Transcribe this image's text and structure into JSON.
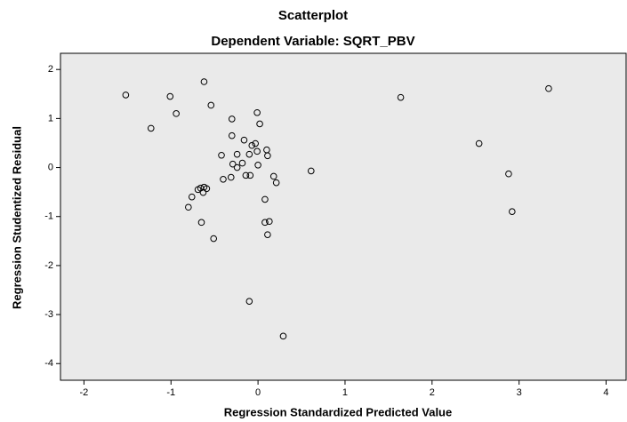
{
  "chart_data": {
    "type": "scatter",
    "title": "Scatterplot",
    "subtitle": "Dependent Variable: SQRT_PBV",
    "x_label": "Regression Standardized Predicted Value",
    "y_label": "Regression Studentized Residual",
    "x": [
      -1.52,
      -1.01,
      -0.94,
      -0.62,
      -1.23,
      -0.54,
      -0.3,
      -0.01,
      0.02,
      -0.3,
      -0.16,
      -0.03,
      -0.07,
      0.1,
      -0.01,
      0.11,
      -0.42,
      -0.24,
      -0.1,
      -0.18,
      -0.29,
      -0.24,
      0.0,
      -0.14,
      -0.09,
      -0.31,
      -0.4,
      0.18,
      0.21,
      0.61,
      -0.62,
      -0.69,
      -0.66,
      -0.59,
      -0.63,
      -0.76,
      -0.8,
      0.08,
      -0.65,
      0.08,
      0.13,
      0.11,
      -0.51,
      -0.1,
      0.29,
      1.64,
      2.54,
      3.34,
      2.88,
      2.92
    ],
    "values": [
      1.48,
      1.45,
      1.1,
      1.75,
      0.8,
      1.27,
      0.99,
      1.12,
      0.89,
      0.65,
      0.56,
      0.49,
      0.45,
      0.36,
      0.33,
      0.24,
      0.25,
      0.27,
      0.27,
      0.09,
      0.07,
      0.0,
      0.05,
      -0.16,
      -0.16,
      -0.2,
      -0.24,
      -0.18,
      -0.31,
      -0.07,
      -0.4,
      -0.45,
      -0.42,
      -0.43,
      -0.51,
      -0.6,
      -0.81,
      -0.65,
      -1.12,
      -1.12,
      -1.1,
      -1.37,
      -1.45,
      -2.73,
      -3.44,
      1.43,
      0.49,
      1.61,
      -0.13,
      -0.9
    ],
    "color": "#000000",
    "background": "#eaeaea",
    "xlim": [
      -2.27,
      4.23
    ],
    "xticks": [
      -2,
      -1,
      0,
      1,
      2,
      3,
      4
    ],
    "ylim": [
      -4.34,
      2.33
    ],
    "yticks": [
      -4,
      -3,
      -2,
      -1,
      0,
      1,
      2
    ]
  }
}
